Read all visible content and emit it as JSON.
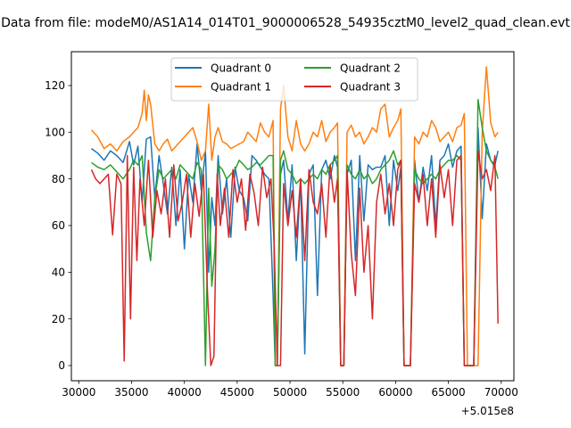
{
  "chart_data": {
    "type": "line",
    "title": "Data from file: modeM0/AS1A14_014T01_9000006528_54935cztM0_level2_quad_clean.evt",
    "xlabel": "",
    "ylabel": "",
    "x_offset_label": "+5.015e8",
    "xlim": [
      29300,
      71200
    ],
    "ylim": [
      -6.5,
      134.5
    ],
    "xticks": [
      30000,
      35000,
      40000,
      45000,
      50000,
      55000,
      60000,
      65000,
      70000
    ],
    "yticks": [
      0,
      20,
      40,
      60,
      80,
      100,
      120
    ],
    "grid": false,
    "legend": {
      "placement": "top-center",
      "columns": 2,
      "entries": [
        "Quadrant 0",
        "Quadrant 1",
        "Quadrant 2",
        "Quadrant 3"
      ]
    },
    "colors": [
      "#1f77b4",
      "#ff7f0e",
      "#2ca02c",
      "#d62728"
    ],
    "series": [
      {
        "name": "Quadrant 0",
        "x": [
          31200,
          31800,
          32400,
          33000,
          33600,
          34200,
          34800,
          35200,
          35600,
          36000,
          36400,
          36800,
          37200,
          37600,
          38000,
          38400,
          38800,
          39200,
          39600,
          40000,
          40400,
          40800,
          41200,
          41600,
          42000,
          42300,
          42600,
          42900,
          43200,
          43600,
          44000,
          44400,
          44800,
          45200,
          45600,
          46000,
          46400,
          46800,
          47200,
          47600,
          48000,
          48400,
          48600,
          48800,
          49100,
          49400,
          49800,
          50200,
          50600,
          51000,
          51400,
          51800,
          52200,
          52600,
          53000,
          53400,
          53800,
          54200,
          54500,
          54800,
          55100,
          55400,
          55800,
          56200,
          56600,
          57000,
          57400,
          57800,
          58200,
          58600,
          59000,
          59400,
          59800,
          60200,
          60500,
          60800,
          61100,
          61400,
          61800,
          62200,
          62600,
          63000,
          63400,
          63800,
          64200,
          64600,
          65000,
          65400,
          65800,
          66200,
          66500,
          66800,
          67100,
          67400,
          67800,
          68200,
          68600,
          69000,
          69400,
          69700
        ],
        "y": [
          93,
          91,
          88,
          92,
          90,
          87,
          96,
          86,
          94,
          70,
          97,
          98,
          72,
          90,
          78,
          65,
          85,
          60,
          84,
          50,
          82,
          70,
          95,
          75,
          92,
          40,
          72,
          60,
          90,
          65,
          80,
          55,
          85,
          75,
          72,
          62,
          90,
          88,
          85,
          82,
          80,
          30,
          0,
          0,
          82,
          88,
          62,
          86,
          45,
          80,
          5,
          82,
          86,
          30,
          84,
          88,
          80,
          90,
          85,
          0,
          0,
          82,
          88,
          45,
          90,
          62,
          86,
          84,
          85,
          85,
          90,
          60,
          88,
          75,
          85,
          0,
          0,
          0,
          88,
          70,
          85,
          75,
          90,
          60,
          88,
          90,
          95,
          85,
          92,
          94,
          0,
          0,
          0,
          0,
          102,
          63,
          95,
          88,
          86,
          92
        ]
      },
      {
        "name": "Quadrant 1",
        "x": [
          31200,
          31800,
          32400,
          33000,
          33600,
          34200,
          34800,
          35200,
          35600,
          36000,
          36200,
          36400,
          36600,
          36800,
          37200,
          37600,
          38000,
          38400,
          38800,
          39200,
          39600,
          40000,
          40400,
          40800,
          41200,
          41600,
          42000,
          42300,
          42600,
          42900,
          43200,
          43600,
          44000,
          44400,
          44800,
          45200,
          45600,
          46000,
          46400,
          46800,
          47200,
          47600,
          48000,
          48400,
          48600,
          48800,
          49100,
          49400,
          49800,
          50200,
          50600,
          51000,
          51400,
          51800,
          52200,
          52600,
          53000,
          53400,
          53800,
          54200,
          54500,
          54800,
          55100,
          55400,
          55800,
          56200,
          56600,
          57000,
          57400,
          57800,
          58200,
          58600,
          59000,
          59400,
          59800,
          60200,
          60500,
          60800,
          61100,
          61400,
          61800,
          62200,
          62600,
          63000,
          63400,
          63800,
          64200,
          64600,
          65000,
          65400,
          65800,
          66200,
          66500,
          66800,
          67100,
          67400,
          67800,
          68200,
          68600,
          69000,
          69400,
          69700
        ],
        "y": [
          101,
          98,
          93,
          95,
          92,
          96,
          98,
          100,
          102,
          108,
          118,
          105,
          116,
          112,
          95,
          92,
          95,
          97,
          92,
          94,
          96,
          98,
          100,
          102,
          96,
          88,
          92,
          112,
          88,
          98,
          102,
          96,
          95,
          93,
          94,
          95,
          96,
          100,
          98,
          96,
          104,
          100,
          98,
          105,
          0,
          0,
          110,
          120,
          98,
          92,
          105,
          95,
          92,
          95,
          100,
          98,
          105,
          96,
          100,
          102,
          104,
          0,
          0,
          100,
          103,
          98,
          100,
          95,
          98,
          102,
          100,
          110,
          112,
          98,
          102,
          105,
          110,
          0,
          0,
          0,
          98,
          95,
          100,
          98,
          105,
          102,
          96,
          98,
          100,
          96,
          102,
          103,
          108,
          0,
          0,
          0,
          0,
          100,
          128,
          104,
          98,
          100
        ]
      },
      {
        "name": "Quadrant 2",
        "x": [
          31200,
          31800,
          32400,
          33000,
          33600,
          34200,
          34800,
          35200,
          35600,
          36000,
          36400,
          36800,
          37200,
          37600,
          38000,
          38400,
          38800,
          39200,
          39600,
          40000,
          40400,
          40800,
          41200,
          41600,
          42000,
          42300,
          42600,
          42900,
          43200,
          43600,
          44000,
          44400,
          44800,
          45200,
          45600,
          46000,
          46400,
          46800,
          47200,
          47600,
          48000,
          48400,
          48600,
          48800,
          49100,
          49400,
          49800,
          50200,
          50600,
          51000,
          51400,
          51800,
          52200,
          52600,
          53000,
          53400,
          53800,
          54200,
          54500,
          54800,
          55100,
          55400,
          55800,
          56200,
          56600,
          57000,
          57400,
          57800,
          58200,
          58600,
          59000,
          59400,
          59800,
          60200,
          60500,
          60800,
          61100,
          61400,
          61800,
          62200,
          62600,
          63000,
          63400,
          63800,
          64200,
          64600,
          65000,
          65400,
          65800,
          66200,
          66500,
          66800,
          67100,
          67400,
          67800,
          68200,
          68600,
          69000,
          69400,
          69700
        ],
        "y": [
          87,
          85,
          84,
          86,
          83,
          80,
          84,
          88,
          86,
          90,
          57,
          45,
          72,
          84,
          80,
          82,
          84,
          80,
          86,
          84,
          82,
          80,
          87,
          84,
          0,
          76,
          34,
          50,
          86,
          84,
          80,
          82,
          84,
          88,
          86,
          84,
          85,
          87,
          86,
          88,
          90,
          90,
          0,
          0,
          88,
          92,
          84,
          82,
          78,
          80,
          78,
          80,
          82,
          80,
          84,
          82,
          86,
          88,
          90,
          0,
          0,
          86,
          82,
          80,
          84,
          80,
          82,
          78,
          80,
          84,
          86,
          88,
          92,
          86,
          88,
          0,
          0,
          0,
          84,
          80,
          78,
          80,
          82,
          80,
          84,
          86,
          88,
          88,
          90,
          88,
          0,
          0,
          0,
          0,
          114,
          102,
          92,
          88,
          85,
          80
        ]
      },
      {
        "name": "Quadrant 3",
        "x": [
          31200,
          31600,
          32000,
          32400,
          32800,
          33200,
          33600,
          34000,
          34300,
          34600,
          34900,
          35200,
          35500,
          35800,
          36200,
          36600,
          37000,
          37400,
          37800,
          38200,
          38600,
          39000,
          39400,
          39800,
          40200,
          40600,
          41000,
          41400,
          41800,
          42200,
          42500,
          42800,
          43100,
          43400,
          43800,
          44200,
          44600,
          45000,
          45400,
          45800,
          46200,
          46600,
          47000,
          47400,
          47800,
          48200,
          48500,
          48800,
          49100,
          49400,
          49800,
          50200,
          50600,
          51000,
          51400,
          51800,
          52200,
          52600,
          53000,
          53400,
          53800,
          54200,
          54500,
          54800,
          55100,
          55400,
          55800,
          56200,
          56600,
          57000,
          57400,
          57800,
          58200,
          58600,
          59000,
          59400,
          59800,
          60200,
          60500,
          60800,
          61100,
          61400,
          61800,
          62200,
          62600,
          63000,
          63400,
          63800,
          64200,
          64600,
          65000,
          65400,
          65800,
          66200,
          66500,
          66800,
          67100,
          67400,
          67800,
          68200,
          68600,
          69000,
          69400,
          69700
        ],
        "y": [
          84,
          80,
          78,
          80,
          82,
          56,
          82,
          78,
          2,
          90,
          20,
          85,
          45,
          80,
          60,
          88,
          55,
          75,
          65,
          80,
          55,
          86,
          62,
          70,
          82,
          55,
          78,
          64,
          82,
          30,
          0,
          4,
          82,
          60,
          76,
          55,
          84,
          70,
          80,
          58,
          82,
          74,
          60,
          85,
          72,
          80,
          52,
          0,
          0,
          78,
          60,
          75,
          55,
          80,
          45,
          84,
          70,
          65,
          78,
          55,
          86,
          70,
          80,
          0,
          0,
          84,
          48,
          30,
          76,
          40,
          60,
          20,
          70,
          82,
          65,
          78,
          60,
          84,
          88,
          0,
          0,
          0,
          78,
          70,
          82,
          60,
          80,
          55,
          86,
          72,
          84,
          60,
          88,
          90,
          0,
          0,
          0,
          0,
          92,
          80,
          84,
          75,
          90,
          18
        ]
      }
    ]
  }
}
